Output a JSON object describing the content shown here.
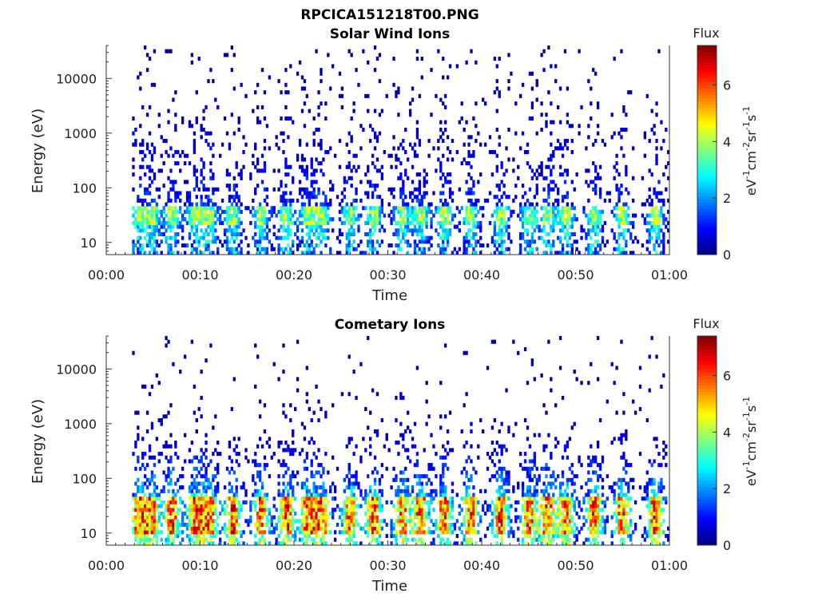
{
  "figure": {
    "suptitle": "RPCICA151218T00.PNG"
  },
  "chart_data": [
    {
      "type": "heatmap",
      "title": "Solar Wind Ions",
      "xlabel": "Time",
      "ylabel": "Energy (eV)",
      "x_ticks": [
        "00:00",
        "00:10",
        "00:20",
        "00:30",
        "00:40",
        "00:50",
        "01:00"
      ],
      "x_range_minutes": [
        0,
        60
      ],
      "data_start_minute": 2.7,
      "y_ticks": [
        10,
        100,
        1000,
        10000
      ],
      "y_tick_labels": [
        "10",
        "100",
        "1000",
        "10000"
      ],
      "y_scale": "log",
      "y_range": [
        6,
        40000
      ],
      "colorbar": {
        "title": "Flux",
        "label": "eV-1cm-2sr-1s-1",
        "ticks": [
          0,
          2,
          4,
          6
        ],
        "range": [
          0,
          7.4
        ],
        "colormap": "jet"
      },
      "bursts_minutes": [
        3.5,
        4.8,
        7.0,
        9.5,
        11.0,
        13.5,
        16.5,
        19.2,
        21.5,
        23.0,
        26.0,
        28.5,
        31.5,
        33.5,
        36.0,
        38.8,
        42.0,
        45.0,
        47.0,
        49.0,
        52.0,
        55.0,
        58.5
      ],
      "peak_flux": 4.5,
      "peak_energy_band_eV": [
        20,
        45
      ]
    },
    {
      "type": "heatmap",
      "title": "Cometary Ions",
      "xlabel": "Time",
      "ylabel": "Energy (eV)",
      "x_ticks": [
        "00:00",
        "00:10",
        "00:20",
        "00:30",
        "00:40",
        "00:50",
        "01:00"
      ],
      "x_range_minutes": [
        0,
        60
      ],
      "data_start_minute": 2.7,
      "y_ticks": [
        10,
        100,
        1000,
        10000
      ],
      "y_tick_labels": [
        "10",
        "100",
        "1000",
        "10000"
      ],
      "y_scale": "log",
      "y_range": [
        6,
        40000
      ],
      "colorbar": {
        "title": "Flux",
        "label": "eV-1cm-2sr-1s-1",
        "ticks": [
          0,
          2,
          4,
          6
        ],
        "range": [
          0,
          7.4
        ],
        "colormap": "jet"
      },
      "bursts_minutes": [
        3.5,
        4.8,
        7.0,
        9.5,
        11.0,
        13.5,
        16.5,
        19.2,
        21.5,
        23.0,
        26.0,
        28.5,
        31.5,
        33.5,
        36.0,
        38.8,
        42.0,
        45.0,
        47.0,
        49.0,
        52.0,
        55.0,
        58.5
      ],
      "peak_flux": 6.5,
      "peak_energy_band_eV": [
        10,
        45
      ]
    }
  ]
}
